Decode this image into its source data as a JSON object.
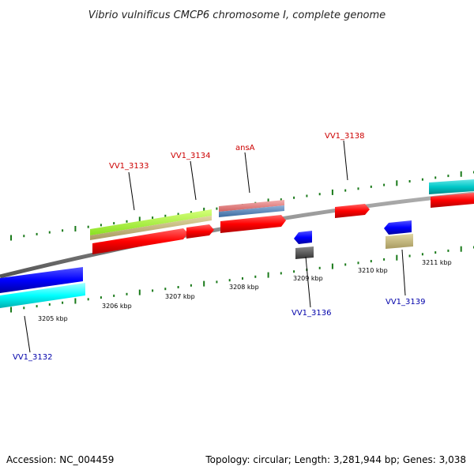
{
  "title": "Vibrio vulnificus CMCP6 chromosome I, complete genome",
  "footer": {
    "accession": "Accession: NC_004459",
    "summary": "Topology: circular; Length: 3,281,944 bp; Genes: 3,038"
  },
  "ticks": [
    "3205 kbp",
    "3206 kbp",
    "3207 kbp",
    "3208 kbp",
    "3209 kbp",
    "3210 kbp",
    "3211 kbp"
  ],
  "forward_labels": [
    "VV1_3133",
    "VV1_3134",
    "ansA",
    "VV1_3138"
  ],
  "reverse_labels": [
    "VV1_3132",
    "VV1_3136",
    "VV1_3139"
  ],
  "colors": {
    "forward_label": "#cc0000",
    "reverse_label": "#0000aa",
    "cds_forward": "#ff0000",
    "cds_reverse": "#0000ff",
    "backbone": "#808080",
    "tick": "#1a7a1a"
  }
}
